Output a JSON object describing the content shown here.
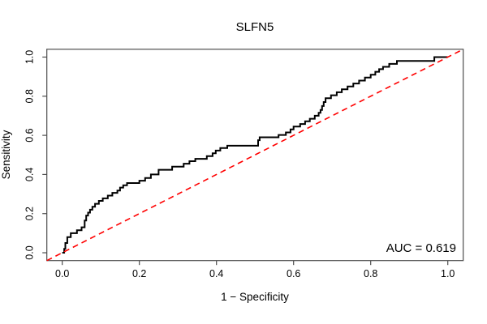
{
  "figure": {
    "title": "SLFN5",
    "auc_label": "AUC = 0.619"
  },
  "chart_data": {
    "type": "line",
    "subtype": "roc-curve",
    "title": "SLFN5",
    "xlabel": "1 − Specificity",
    "ylabel": "Sensitivity",
    "xlim": [
      -0.04,
      1.04
    ],
    "ylim": [
      -0.04,
      1.04
    ],
    "x_ticks": [
      0.0,
      0.2,
      0.4,
      0.6,
      0.8,
      1.0
    ],
    "y_ticks": [
      0.0,
      0.2,
      0.4,
      0.6,
      0.8,
      1.0
    ],
    "grid": false,
    "legend": null,
    "frame_color": "#4d4d4d",
    "annotations": [
      {
        "text": "AUC = 0.619",
        "x": 1.02,
        "y": 0.02,
        "anchor": "end"
      }
    ],
    "series": [
      {
        "name": "ROC curve",
        "draw": "step",
        "color": "#000000",
        "width": 2,
        "dash": null,
        "points": [
          [
            0.0,
            0.0
          ],
          [
            0.005,
            0.02
          ],
          [
            0.008,
            0.05
          ],
          [
            0.013,
            0.08
          ],
          [
            0.022,
            0.1
          ],
          [
            0.038,
            0.115
          ],
          [
            0.05,
            0.13
          ],
          [
            0.058,
            0.165
          ],
          [
            0.062,
            0.19
          ],
          [
            0.067,
            0.205
          ],
          [
            0.072,
            0.22
          ],
          [
            0.078,
            0.235
          ],
          [
            0.085,
            0.25
          ],
          [
            0.095,
            0.265
          ],
          [
            0.105,
            0.278
          ],
          [
            0.118,
            0.292
          ],
          [
            0.13,
            0.306
          ],
          [
            0.143,
            0.318
          ],
          [
            0.15,
            0.333
          ],
          [
            0.158,
            0.345
          ],
          [
            0.168,
            0.356
          ],
          [
            0.2,
            0.368
          ],
          [
            0.215,
            0.382
          ],
          [
            0.23,
            0.4
          ],
          [
            0.25,
            0.424
          ],
          [
            0.285,
            0.44
          ],
          [
            0.315,
            0.455
          ],
          [
            0.33,
            0.468
          ],
          [
            0.345,
            0.48
          ],
          [
            0.375,
            0.494
          ],
          [
            0.39,
            0.508
          ],
          [
            0.398,
            0.522
          ],
          [
            0.41,
            0.535
          ],
          [
            0.428,
            0.547
          ],
          [
            0.508,
            0.575
          ],
          [
            0.512,
            0.59
          ],
          [
            0.561,
            0.602
          ],
          [
            0.58,
            0.615
          ],
          [
            0.592,
            0.63
          ],
          [
            0.6,
            0.645
          ],
          [
            0.617,
            0.658
          ],
          [
            0.63,
            0.672
          ],
          [
            0.642,
            0.685
          ],
          [
            0.655,
            0.7
          ],
          [
            0.665,
            0.715
          ],
          [
            0.67,
            0.73
          ],
          [
            0.674,
            0.75
          ],
          [
            0.678,
            0.77
          ],
          [
            0.683,
            0.79
          ],
          [
            0.697,
            0.805
          ],
          [
            0.712,
            0.82
          ],
          [
            0.725,
            0.835
          ],
          [
            0.74,
            0.85
          ],
          [
            0.755,
            0.865
          ],
          [
            0.77,
            0.88
          ],
          [
            0.785,
            0.895
          ],
          [
            0.8,
            0.91
          ],
          [
            0.812,
            0.925
          ],
          [
            0.822,
            0.938
          ],
          [
            0.832,
            0.95
          ],
          [
            0.848,
            0.965
          ],
          [
            0.868,
            0.98
          ],
          [
            0.965,
            1.0
          ],
          [
            1.0,
            1.0
          ]
        ]
      },
      {
        "name": "chance diagonal",
        "draw": "line",
        "color": "#ff0000",
        "width": 1.6,
        "dash": "7,5",
        "points": [
          [
            -0.04,
            -0.04
          ],
          [
            1.04,
            1.04
          ]
        ]
      }
    ]
  }
}
